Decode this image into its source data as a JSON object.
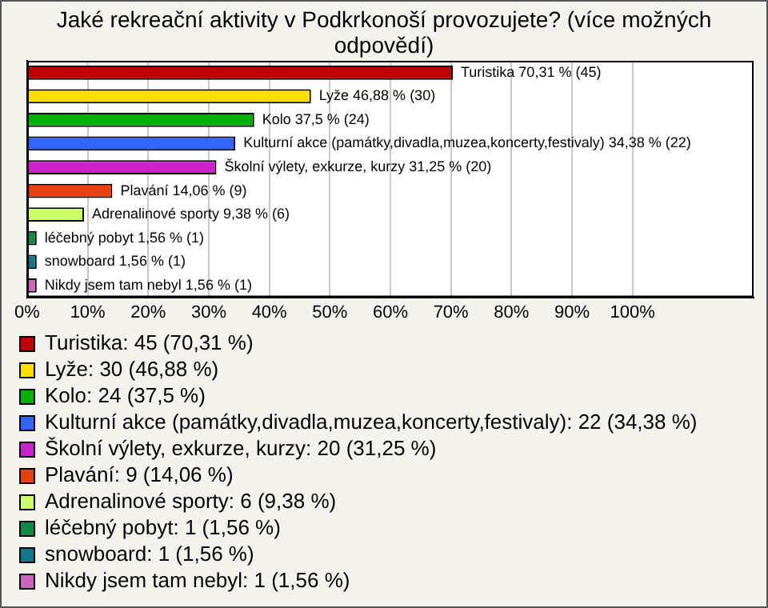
{
  "chart_data": {
    "type": "bar",
    "orientation": "horizontal",
    "title": "Jaké rekreační aktivity v Podkrkonoší provozujete? (více možných odpovědí)",
    "categories": [
      null,
      null,
      null,
      null,
      null,
      null,
      null,
      null,
      null,
      null
    ],
    "series": [
      {
        "name": "Turistika: 45 (70,31 %)",
        "color": "#c00000",
        "values": [
          70.31,
          null,
          null,
          null,
          null,
          null,
          null,
          null,
          null,
          null
        ],
        "value_labels": [
          "Turistika 70,31 % (45)",
          null,
          null,
          null,
          null,
          null,
          null,
          null,
          null,
          null
        ]
      },
      {
        "name": "Lyže: 30 (46,88 %)",
        "color": "#ffdd00",
        "values": [
          null,
          46.88,
          null,
          null,
          null,
          null,
          null,
          null,
          null,
          null
        ],
        "value_labels": [
          null,
          "Lyže 46,88 % (30)",
          null,
          null,
          null,
          null,
          null,
          null,
          null,
          null
        ]
      },
      {
        "name": "Kolo: 24 (37,5 %)",
        "color": "#00b000",
        "values": [
          null,
          null,
          37.5,
          null,
          null,
          null,
          null,
          null,
          null,
          null
        ],
        "value_labels": [
          null,
          null,
          "Kolo 37,5 % (24)",
          null,
          null,
          null,
          null,
          null,
          null,
          null
        ]
      },
      {
        "name": "Kulturní akce (památky,divadla,muzea,koncerty,festivaly): 22 (34,38 %)",
        "color": "#3366ff",
        "values": [
          null,
          null,
          null,
          34.38,
          null,
          null,
          null,
          null,
          null,
          null
        ],
        "value_labels": [
          null,
          null,
          null,
          "Kulturní akce (památky,divadla,muzea,koncerty,festivaly) 34,38 % (22)",
          null,
          null,
          null,
          null,
          null,
          null
        ]
      },
      {
        "name": "Školní výlety, exkurze, kurzy: 20 (31,25 %)",
        "color": "#cc22cc",
        "values": [
          null,
          null,
          null,
          null,
          31.25,
          null,
          null,
          null,
          null,
          null
        ],
        "value_labels": [
          null,
          null,
          null,
          null,
          "Školní výlety, exkurze, kurzy 31,25 % (20)",
          null,
          null,
          null,
          null,
          null
        ]
      },
      {
        "name": "Plavání: 9 (14,06 %)",
        "color": "#e84010",
        "values": [
          null,
          null,
          null,
          null,
          null,
          14.06,
          null,
          null,
          null,
          null
        ],
        "value_labels": [
          null,
          null,
          null,
          null,
          null,
          "Plavání 14,06 % (9)",
          null,
          null,
          null,
          null
        ]
      },
      {
        "name": "Adrenalinové sporty: 6 (9,38 %)",
        "color": "#ccff66",
        "values": [
          null,
          null,
          null,
          null,
          null,
          null,
          9.38,
          null,
          null,
          null
        ],
        "value_labels": [
          null,
          null,
          null,
          null,
          null,
          null,
          "Adrenalinové sporty 9,38 % (6)",
          null,
          null,
          null
        ]
      },
      {
        "name": "léčebný pobyt: 1 (1,56 %)",
        "color": "#118844",
        "values": [
          null,
          null,
          null,
          null,
          null,
          null,
          null,
          1.56,
          null,
          null
        ],
        "value_labels": [
          null,
          null,
          null,
          null,
          null,
          null,
          null,
          "léčebný pobyt 1,56 % (1)",
          null,
          null
        ]
      },
      {
        "name": "snowboard: 1 (1,56 %)",
        "color": "#117788",
        "values": [
          null,
          null,
          null,
          null,
          null,
          null,
          null,
          null,
          1.56,
          null
        ],
        "value_labels": [
          null,
          null,
          null,
          null,
          null,
          null,
          null,
          null,
          "snowboard 1,56 % (1)",
          null
        ]
      },
      {
        "name": "Nikdy jsem tam nebyl: 1 (1,56 %)",
        "color": "#cc66bb",
        "values": [
          null,
          null,
          null,
          null,
          null,
          null,
          null,
          null,
          null,
          1.56
        ],
        "value_labels": [
          null,
          null,
          null,
          null,
          null,
          null,
          null,
          null,
          null,
          "Nikdy jsem tam nebyl 1,56 % (1)"
        ]
      }
    ],
    "xlim": [
      0,
      120
    ],
    "xticks": [
      {
        "value": 0,
        "label": "0%"
      },
      {
        "value": 10,
        "label": "10%"
      },
      {
        "value": 20,
        "label": "20%"
      },
      {
        "value": 30,
        "label": "30%"
      },
      {
        "value": 40,
        "label": "40%"
      },
      {
        "value": 50,
        "label": "50%"
      },
      {
        "value": 60,
        "label": "60%"
      },
      {
        "value": 70,
        "label": "70%"
      },
      {
        "value": 80,
        "label": "80%"
      },
      {
        "value": 90,
        "label": "90%"
      },
      {
        "value": 100,
        "label": "100%"
      }
    ],
    "grid": "x",
    "legend": "bottom",
    "tick_labels": "x"
  }
}
